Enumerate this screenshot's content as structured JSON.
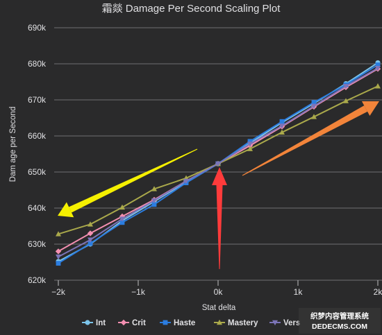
{
  "chart_data": {
    "type": "line",
    "title": "霜燚 Damage Per Second Scaling Plot",
    "xlabel": "Stat delta",
    "ylabel": "Dam age per Second",
    "x": [
      -2000,
      -1600,
      -1200,
      -800,
      -400,
      0,
      400,
      800,
      1200,
      1600,
      2000
    ],
    "x_tick_values": [
      -2000,
      -1000,
      0,
      1000,
      2000
    ],
    "x_tick_labels": [
      "−2k",
      "−1k",
      "0k",
      "1k",
      "2k"
    ],
    "xlim": [
      -2000,
      2000
    ],
    "y_tick_values": [
      620000,
      630000,
      640000,
      650000,
      660000,
      670000,
      680000,
      690000
    ],
    "y_tick_labels": [
      "620k",
      "630k",
      "640k",
      "650k",
      "660k",
      "670k",
      "680k",
      "690k"
    ],
    "ylim": [
      620000,
      690000
    ],
    "grid": true,
    "legend_position": "bottom",
    "series": [
      {
        "name": "Int",
        "color": "#7cc4ea",
        "marker": "circle",
        "values": [
          625200,
          630000,
          636500,
          641800,
          647200,
          652300,
          658000,
          663700,
          669000,
          674500,
          680300
        ]
      },
      {
        "name": "Crit",
        "color": "#f48fb1",
        "marker": "diamond",
        "values": [
          628000,
          633000,
          637700,
          642300,
          647500,
          652300,
          657300,
          662600,
          668100,
          673500,
          678600
        ]
      },
      {
        "name": "Haste",
        "color": "#2b7de0",
        "marker": "square",
        "values": [
          624700,
          630200,
          636000,
          641000,
          647000,
          652300,
          658500,
          664000,
          669300,
          674200,
          679700
        ]
      },
      {
        "name": "Mastery",
        "color": "#aaa94b",
        "marker": "triangle",
        "values": [
          632800,
          635500,
          640200,
          645300,
          648300,
          652300,
          656400,
          661000,
          665300,
          669700,
          673800
        ]
      },
      {
        "name": "Vers",
        "color": "#7c74b8",
        "marker": "triangle-down",
        "values": [
          626500,
          631200,
          637000,
          642100,
          647500,
          652300,
          657800,
          662800,
          668300,
          673800,
          678800
        ]
      }
    ],
    "annotations": [
      {
        "type": "arrow",
        "color": "#f5f000",
        "description": "yellow arrow pointing down-left toward low end of Mastery"
      },
      {
        "type": "arrow",
        "color": "#ff3b3b",
        "description": "red arrow pointing up at the 0k crossing point"
      },
      {
        "type": "arrow",
        "color": "#f2843a",
        "description": "orange arrow pointing up-right toward high end"
      }
    ]
  },
  "watermark": {
    "line1": "织梦内容管理系统",
    "line2": "DEDECMS.COM"
  },
  "colors": {
    "background": "#2a2a2b",
    "grid": "#707073",
    "text": "#e0e0e3"
  }
}
